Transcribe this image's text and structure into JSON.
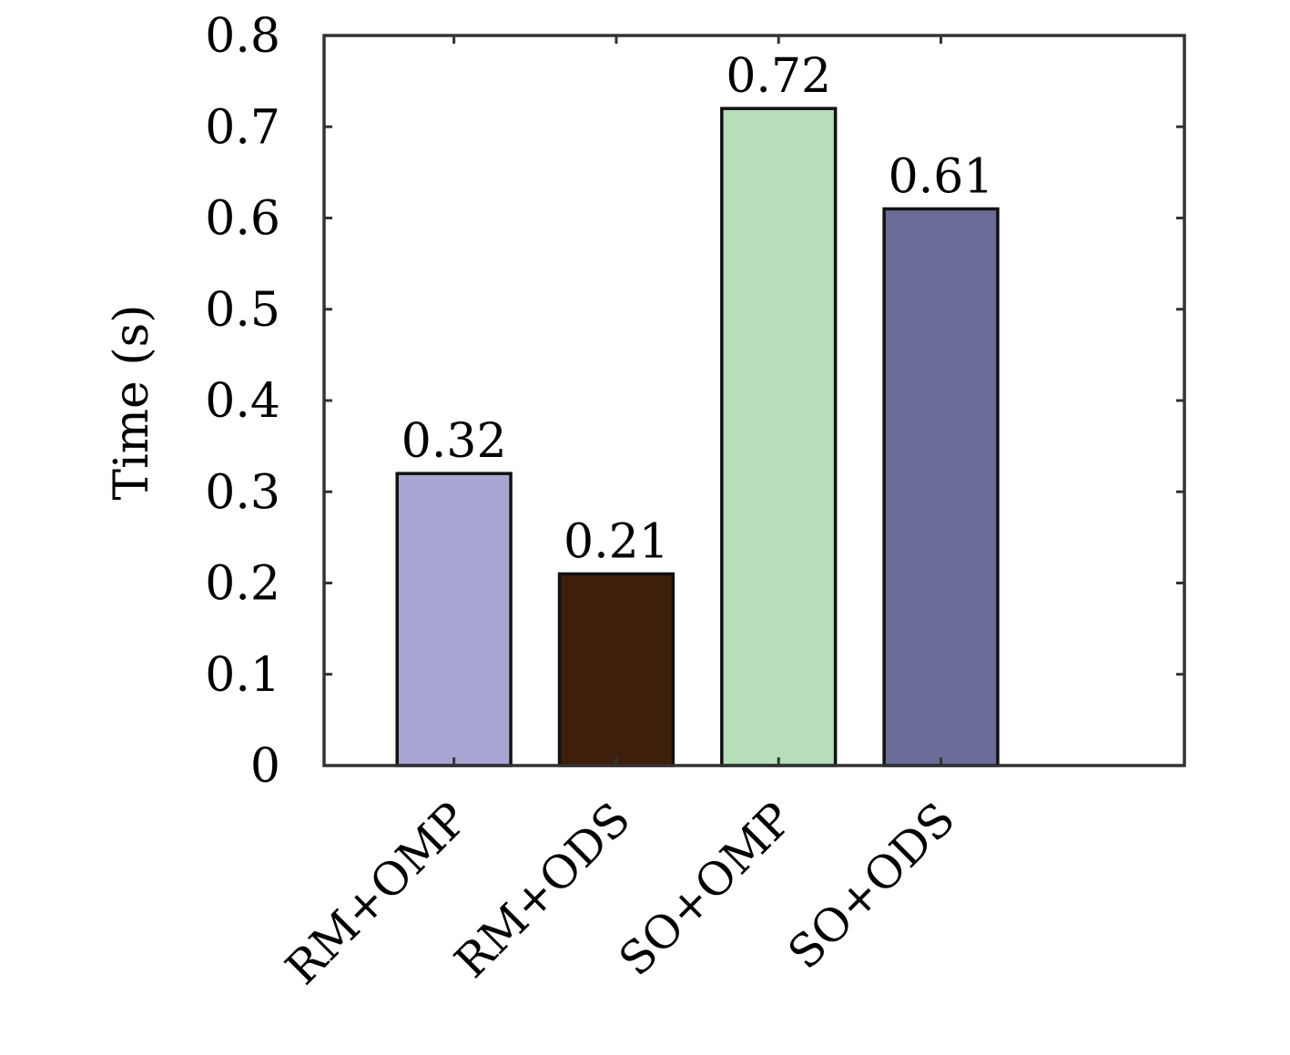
{
  "chart_data": {
    "type": "bar",
    "categories": [
      "RM+OMP",
      "RM+ODS",
      "SO+OMP",
      "SO+ODS"
    ],
    "values": [
      0.32,
      0.21,
      0.72,
      0.61
    ],
    "value_labels": [
      "0.32",
      "0.21",
      "0.72",
      "0.61"
    ],
    "bar_colors": [
      "#a7a5d1",
      "#3d1f0b",
      "#b8ddbb",
      "#6c6c98"
    ],
    "title": "",
    "xlabel": "",
    "ylabel": "Time (s)",
    "ylim": [
      0,
      0.8
    ],
    "yticks": [
      0,
      0.1,
      0.2,
      0.3,
      0.4,
      0.5,
      0.6,
      0.7,
      0.8
    ],
    "ytick_labels": [
      "0",
      "0.1",
      "0.2",
      "0.3",
      "0.4",
      "0.5",
      "0.6",
      "0.7",
      "0.8"
    ],
    "xlim": [
      0.2,
      5.5
    ],
    "grid": false,
    "legend": "none",
    "axis_color": "#333333"
  }
}
